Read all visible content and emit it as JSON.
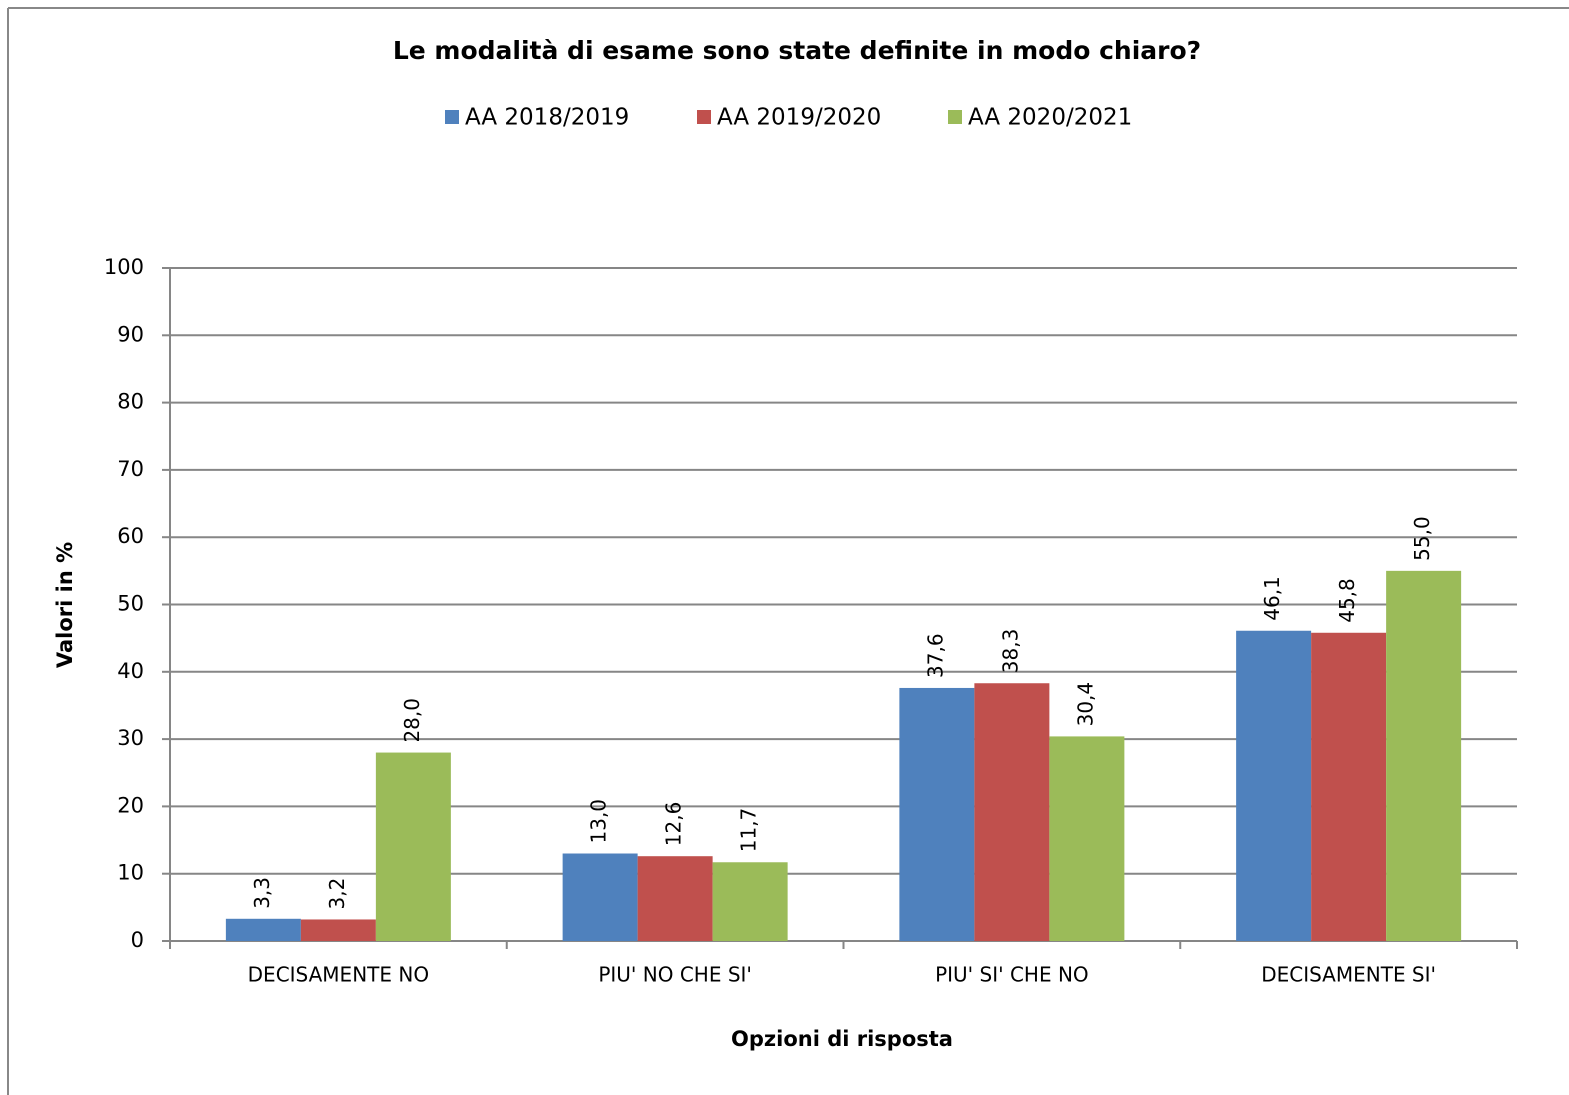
{
  "chart_data": {
    "type": "bar",
    "title": "Le modalità di esame sono state definite in modo chiaro?",
    "y_label": "Valori in %",
    "x_label": "Opzioni di risposta",
    "categories": [
      "DECISAMENTE NO",
      "PIU' NO CHE SI'",
      "PIU' SI' CHE NO",
      "DECISAMENTE SI'"
    ],
    "series": [
      {
        "name": "AA 2018/2019",
        "color": "#4f81bd",
        "values": [
          3.3,
          13.0,
          37.6,
          46.1
        ],
        "value_labels": [
          "3,3",
          "13,0",
          "37,6",
          "46,1"
        ]
      },
      {
        "name": "AA 2019/2020",
        "color": "#c0504d",
        "values": [
          3.2,
          12.6,
          38.3,
          45.8
        ],
        "value_labels": [
          "3,2",
          "12,6",
          "38,3",
          "45,8"
        ]
      },
      {
        "name": "AA 2020/2021",
        "color": "#9bbb59",
        "values": [
          28.0,
          11.7,
          30.4,
          55.0
        ],
        "value_labels": [
          "28,0",
          "11,7",
          "30,4",
          "55,0"
        ]
      }
    ],
    "ylim": [
      0,
      100
    ],
    "yticks": [
      0,
      10,
      20,
      30,
      40,
      50,
      60,
      70,
      80,
      90,
      100
    ],
    "grid": true,
    "legend": "top"
  }
}
